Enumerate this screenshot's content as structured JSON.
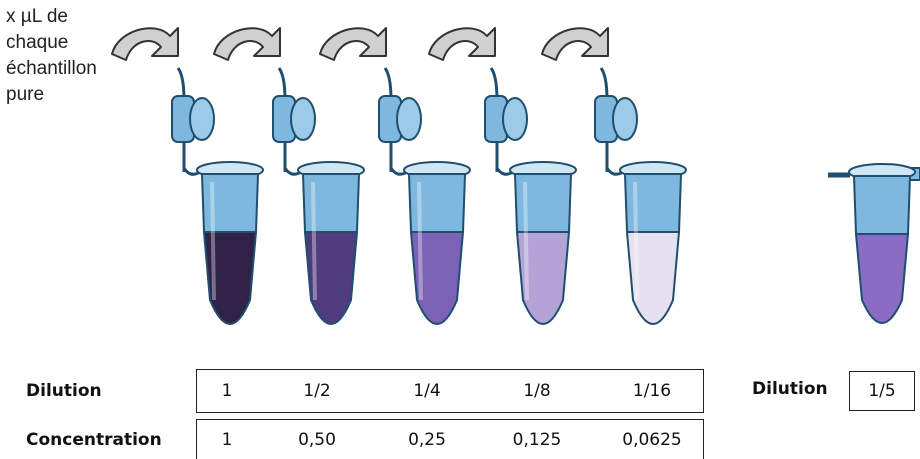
{
  "caption": {
    "lines": [
      "x µL de",
      "chaque",
      "échantillon",
      "pure"
    ]
  },
  "tubes": [
    {
      "fill": "#2f2246"
    },
    {
      "fill": "#4f3b7e"
    },
    {
      "fill": "#7c62b6"
    },
    {
      "fill": "#b4a4d6"
    },
    {
      "fill": "#e6e1f0"
    }
  ],
  "single_tube": {
    "fill": "#8a6cc4"
  },
  "table": {
    "dilution_label": "Dilution",
    "concentration_label": "Concentration",
    "dilutions": [
      "1",
      "1/2",
      "1/4",
      "1/8",
      "1/16"
    ],
    "concentrations": [
      "1",
      "0,50",
      "0,25",
      "0,125",
      "0,0625"
    ]
  },
  "side": {
    "label": "Dilution",
    "value": "1/5"
  },
  "colors": {
    "tube_blue": "#7fb8de",
    "tube_outline": "#1f4e6e",
    "arrow_fill": "#d0d0d0",
    "arrow_stroke": "#333333"
  }
}
